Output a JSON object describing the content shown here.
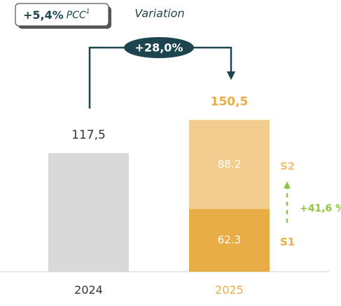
{
  "chart_data": {
    "type": "bar",
    "stacked": true,
    "categories": [
      "2024",
      "2025"
    ],
    "category_colors": [
      "#333333",
      "#e8ae45"
    ],
    "series": [
      {
        "name": "S1",
        "color": "#e8ae45",
        "label_color": "#e8ae45",
        "values": [
          null,
          62.3
        ]
      },
      {
        "name": "S2",
        "color": "#f3cd8e",
        "label_color": "#f0c27a",
        "values": [
          null,
          88.2
        ]
      },
      {
        "color": "#d9d9d9",
        "values": [
          117.5,
          null
        ]
      }
    ],
    "totals": {
      "values": [
        117.5,
        150.5
      ],
      "value_labels": [
        "117,5",
        "150,5"
      ],
      "colors": [
        "#333333",
        "#e8ae45"
      ]
    },
    "annotations": {
      "pcc_value": "+5,4%",
      "pcc_text": "PCC",
      "pcc_note": "1",
      "variation_label": "Variation",
      "variation_value": "+28,0%",
      "s2_growth": "+41,6 %"
    }
  }
}
